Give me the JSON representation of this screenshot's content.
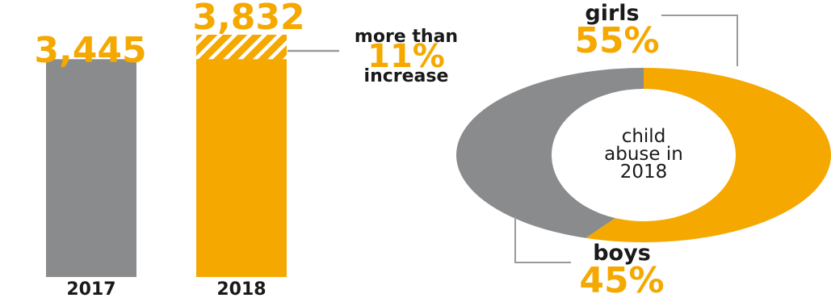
{
  "colors": {
    "accent": "#f5a800",
    "gray": "#8a8b8d",
    "text": "#1a1a1a",
    "leader": "#9a9a9a"
  },
  "chart_data": [
    {
      "type": "bar",
      "categories": [
        "2017",
        "2018"
      ],
      "values": [
        3445,
        3832
      ],
      "value_labels": [
        "3,445",
        "3,832"
      ],
      "bar_colors": [
        "gray",
        "accent"
      ],
      "increase_note": {
        "prefix": "more than",
        "value": "11%",
        "suffix": "increase"
      }
    },
    {
      "type": "pie",
      "style": "donut",
      "center_label": [
        "child",
        "abuse in",
        "2018"
      ],
      "slices": [
        {
          "label": "girls",
          "value": 55,
          "value_label": "55%",
          "color": "accent"
        },
        {
          "label": "boys",
          "value": 45,
          "value_label": "45%",
          "color": "gray"
        }
      ]
    }
  ]
}
